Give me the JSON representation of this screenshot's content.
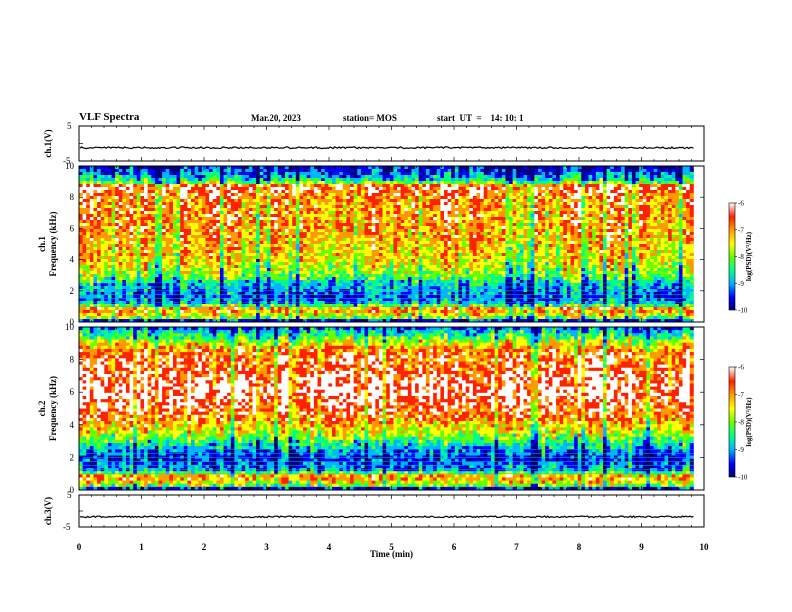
{
  "header": {
    "title": "VLF Spectra",
    "date": "Mar.20, 2023",
    "station": "station= MOS",
    "start": "start  UT  =    14: 10: 1"
  },
  "colors": {
    "colormap": [
      "#00007a",
      "#0000ff",
      "#00b4ff",
      "#00ff8a",
      "#66ff00",
      "#ffff00",
      "#ff9900",
      "#ff2200",
      "#ffffff"
    ]
  },
  "chart_data": [
    {
      "type": "line",
      "name": "ch1-waveform",
      "ylabel": "ch.1(V)",
      "yticks": [
        "5",
        "-5"
      ],
      "ylim": [
        -5,
        5
      ],
      "xlim": [
        0,
        10
      ],
      "baseline_value": -1.2
    },
    {
      "type": "heatmap",
      "name": "ch1-spectrogram",
      "ylabel_top": "ch.1",
      "ylabel": "Frequency (kHz)",
      "yticks": [
        "0",
        "2",
        "4",
        "6",
        "8",
        "10"
      ],
      "ylim": [
        0,
        10
      ],
      "xlim": [
        0,
        9.83
      ],
      "colorbar": {
        "label": "log(PSD)(V²/Hz)",
        "ticks": [
          "-6",
          "-7",
          "-8",
          "-9",
          "-10"
        ],
        "range": [
          -10,
          -6
        ]
      },
      "frequency_profile_kHz": [
        0,
        0.3,
        0.8,
        1.2,
        1.5,
        2.0,
        2.5,
        3.0,
        4.0,
        6.0,
        8.0,
        8.7,
        9.0,
        9.5,
        10.0
      ],
      "level_profile_log_psd": [
        -10,
        -7.8,
        -6.8,
        -8.7,
        -9.1,
        -8.9,
        -8.6,
        -7.9,
        -7.4,
        -7.0,
        -6.9,
        -6.4,
        -8.3,
        -9.0,
        -9.5
      ]
    },
    {
      "type": "heatmap",
      "name": "ch2-spectrogram",
      "ylabel_top": "ch.2",
      "ylabel": "Frequency (kHz)",
      "yticks": [
        "0",
        "2",
        "4",
        "6",
        "8",
        "10"
      ],
      "ylim": [
        0,
        10
      ],
      "xlim": [
        0,
        9.83
      ],
      "colorbar": {
        "label": "log(PSD)(V²/Hz)",
        "ticks": [
          "-6",
          "-7",
          "-8",
          "-9",
          "-10"
        ],
        "range": [
          -10,
          -6
        ]
      },
      "frequency_profile_kHz": [
        0,
        0.3,
        0.8,
        1.2,
        2.0,
        2.5,
        3.0,
        3.5,
        4.5,
        6.0,
        7.5,
        8.5,
        9.2,
        9.7,
        10.0
      ],
      "level_profile_log_psd": [
        -10,
        -7.8,
        -6.8,
        -8.8,
        -9.3,
        -8.8,
        -8.2,
        -7.6,
        -6.8,
        -6.2,
        -6.6,
        -6.8,
        -7.8,
        -8.6,
        -9.2
      ]
    },
    {
      "type": "line",
      "name": "ch3-waveform",
      "ylabel": "ch.3(V)",
      "yticks": [
        "5",
        "-5"
      ],
      "ylim": [
        -5,
        5
      ],
      "xlim": [
        0,
        10
      ],
      "baseline_value": -1.8
    }
  ],
  "xaxis": {
    "label": "Time  (min)",
    "ticks": [
      "0",
      "1",
      "2",
      "3",
      "4",
      "5",
      "6",
      "7",
      "8",
      "9",
      "10"
    ],
    "range": [
      0,
      10
    ]
  }
}
